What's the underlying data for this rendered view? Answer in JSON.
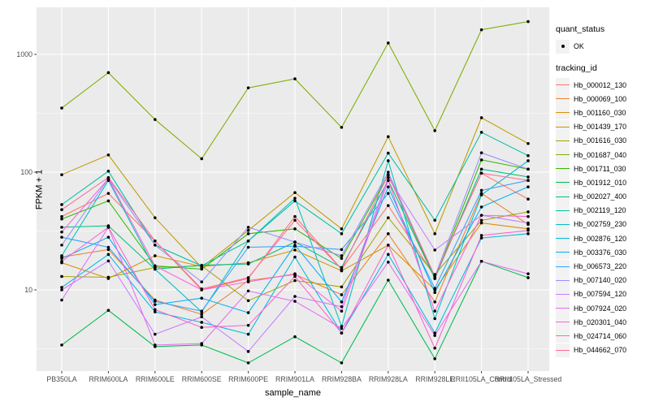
{
  "chart_data": {
    "type": "line",
    "title": "",
    "xlabel": "sample_name",
    "ylabel": "FPKM + 1",
    "y_scale": "log10",
    "y_ticks": [
      10,
      100,
      1000
    ],
    "y_minor_gridlines": [
      3.162,
      31.62,
      316.2
    ],
    "ylim_log": [
      2.05,
      2470
    ],
    "grid": true,
    "legend_position": "right",
    "point_shape": "filled-circle-black",
    "categories": [
      "PB350LA",
      "RRIM600LA",
      "RRIM600LE",
      "RRIM600SE",
      "RRIM600PE",
      "RRIM901LA",
      "RRIM928BA",
      "RRIM928LA",
      "RRIM928LE",
      "RRII105LA_Control",
      "RRII105LA_Stressed"
    ],
    "series": [
      {
        "name": "Hb_000012_130",
        "color": "#F8766D",
        "values": [
          42,
          66,
          26,
          10,
          12.5,
          42,
          15,
          52,
          13,
          98,
          59
        ]
      },
      {
        "name": "Hb_000069_100",
        "color": "#EA8331",
        "values": [
          19,
          22,
          8.2,
          6.2,
          12,
          13.5,
          9.1,
          30,
          7.9,
          66,
          36
        ]
      },
      {
        "name": "Hb_001160_030",
        "color": "#D89000",
        "values": [
          17,
          12.5,
          19.5,
          15.8,
          17,
          21.8,
          14.5,
          24,
          10,
          37,
          33
        ]
      },
      {
        "name": "Hb_001439_170",
        "color": "#C09B00",
        "values": [
          95,
          140,
          41,
          15.5,
          32,
          67,
          33,
          200,
          30,
          290,
          175
        ]
      },
      {
        "name": "Hb_001616_030",
        "color": "#A3A500",
        "values": [
          13,
          12.8,
          15.5,
          16,
          8.1,
          12,
          10.6,
          41,
          13.5,
          39,
          46
        ]
      },
      {
        "name": "Hb_001687_040",
        "color": "#7CAE00",
        "values": [
          350,
          700,
          280,
          130,
          520,
          620,
          240,
          1250,
          225,
          1620,
          1900
        ]
      },
      {
        "name": "Hb_001711_030",
        "color": "#39B600",
        "values": [
          40,
          57,
          16,
          15,
          30,
          33,
          18.5,
          95,
          12.5,
          127,
          106
        ]
      },
      {
        "name": "Hb_001912_010",
        "color": "#00BB4E",
        "values": [
          3.4,
          6.7,
          3.3,
          3.4,
          2.4,
          4.0,
          2.4,
          12.1,
          2.6,
          17.5,
          12.7
        ]
      },
      {
        "name": "Hb_002027_400",
        "color": "#00BF7D",
        "values": [
          34,
          35,
          15,
          16.2,
          16.6,
          25.5,
          15.5,
          85,
          12.5,
          106,
          91
        ]
      },
      {
        "name": "Hb_002119_120",
        "color": "#00C1A3",
        "values": [
          53,
          102,
          24,
          16,
          26,
          57,
          30,
          145,
          39,
          218,
          138
        ]
      },
      {
        "name": "Hb_002759_230",
        "color": "#00BFC4",
        "values": [
          19.5,
          85,
          15,
          6.5,
          26,
          60,
          4.9,
          125,
          5.7,
          64,
          125
        ]
      },
      {
        "name": "Hb_002876_120",
        "color": "#00BAE0",
        "values": [
          10.5,
          20,
          6.5,
          5.3,
          4.2,
          19,
          4.3,
          20,
          4.3,
          27.6,
          30
        ]
      },
      {
        "name": "Hb_003376_030",
        "color": "#00B0F6",
        "values": [
          18.5,
          28,
          7.5,
          8.5,
          6.4,
          24,
          7.9,
          75,
          9.5,
          50.6,
          75
        ]
      },
      {
        "name": "Hb_006573_220",
        "color": "#35A2FF",
        "values": [
          28,
          23,
          8,
          6.6,
          23,
          23.5,
          22,
          66,
          10.3,
          70,
          85
        ]
      },
      {
        "name": "Hb_007140_020",
        "color": "#9590FF",
        "values": [
          24,
          88,
          24,
          11.7,
          34,
          25.5,
          19.5,
          100,
          13,
          146,
          106
        ]
      },
      {
        "name": "Hb_007594_120",
        "color": "#C77CFF",
        "values": [
          10,
          17.6,
          4.2,
          5.9,
          3.0,
          8.8,
          7.2,
          90,
          21.8,
          43,
          37
        ]
      },
      {
        "name": "Hb_007924_020",
        "color": "#E76BF3",
        "values": [
          8.2,
          34,
          3.4,
          3.5,
          9.8,
          8.0,
          4.7,
          17.2,
          4.1,
          17.5,
          13.7
        ]
      },
      {
        "name": "Hb_020301_040",
        "color": "#FA62DB",
        "values": [
          31,
          88,
          16,
          10,
          11.7,
          13.7,
          6.6,
          85,
          6.6,
          43,
          42
        ]
      },
      {
        "name": "Hb_024714_060",
        "color": "#FF61CC",
        "values": [
          17.5,
          34,
          6.8,
          4.8,
          5.0,
          13,
          4.3,
          24,
          3.2,
          29,
          32
        ]
      },
      {
        "name": "Hb_044662_070",
        "color": "#FF6A98",
        "values": [
          48,
          90,
          26,
          10.2,
          12.7,
          39,
          15,
          95,
          13,
          98,
          85
        ]
      }
    ]
  },
  "legend": {
    "quant_status_title": "quant_status",
    "quant_status_items": [
      {
        "label": "OK",
        "symbol": "black-point"
      }
    ],
    "tracking_id_title": "tracking_id"
  },
  "style_colors": {
    "panel_bg": "#EBEBEB",
    "grid": "#FFFFFF",
    "point": "#000000",
    "axis_text": "#4D4D4D",
    "tick_mark": "#333333",
    "legend_key_bg": "#F2F2F2"
  }
}
